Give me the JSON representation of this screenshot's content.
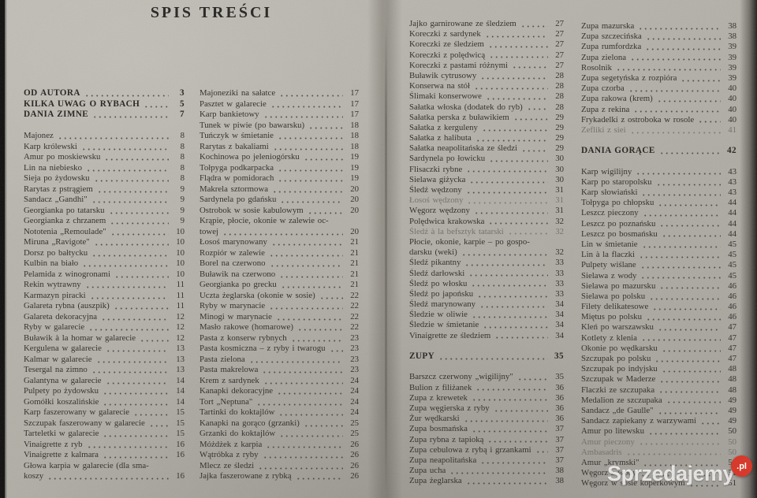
{
  "page_title": "SPIS TREŚCI",
  "watermark": {
    "text": "Sprzedajemy",
    "badge": ".pl",
    "badge_color": "#d63a2c"
  },
  "columns": [
    {
      "entries": [
        {
          "t": "OD AUTORA",
          "p": "3",
          "b": true
        },
        {
          "t": "KILKA UWAG O RYBACH",
          "p": "5",
          "b": true
        },
        {
          "t": "DANIA ZIMNE",
          "p": "7",
          "b": true
        },
        {
          "blank": true
        },
        {
          "t": "Majonez",
          "p": "8"
        },
        {
          "t": "Karp królewski",
          "p": "8"
        },
        {
          "t": "Amur po moskiewsku",
          "p": "8"
        },
        {
          "t": "Lin na niebiesko",
          "p": "8"
        },
        {
          "t": "Sieja po żydowsku",
          "p": "8"
        },
        {
          "t": "Rarytas z pstrągiem",
          "p": "9"
        },
        {
          "t": "Sandacz „Gandhi\"",
          "p": "9"
        },
        {
          "t": "Georgianka po tatarsku",
          "p": "9"
        },
        {
          "t": "Georgianka z chrzanem",
          "p": "9"
        },
        {
          "t": "Nototenia „Remoulade\"",
          "p": "10"
        },
        {
          "t": "Miruna „Ravigote\"",
          "p": "10"
        },
        {
          "t": "Dorsz po bałtycku",
          "p": "10"
        },
        {
          "t": "Kulbin na biało",
          "p": "10"
        },
        {
          "t": "Pelamida z winogronami",
          "p": "10"
        },
        {
          "t": "Rekin wytrawny",
          "p": "11"
        },
        {
          "t": "Karmazyn piracki",
          "p": "11"
        },
        {
          "t": "Galareta rybna (auszpik)",
          "p": "11"
        },
        {
          "t": "Galareta dekoracyjna",
          "p": "12"
        },
        {
          "t": "Ryby w galarecie",
          "p": "12"
        },
        {
          "t": "Buławik à la homar w galarecie",
          "p": "12"
        },
        {
          "t": "Kergulena w galarecie",
          "p": "13"
        },
        {
          "t": "Kalmar w galarecie",
          "p": "13"
        },
        {
          "t": "Tesergal na zimno",
          "p": "13"
        },
        {
          "t": "Galantyna w galarecie",
          "p": "14"
        },
        {
          "t": "Pulpety po żydowsku",
          "p": "14"
        },
        {
          "t": "Gomółki koszalińskie",
          "p": "14"
        },
        {
          "t": "Karp faszerowany w galarecie",
          "p": "15"
        },
        {
          "t": "Szczupak faszerowany w galarecie",
          "p": "15"
        },
        {
          "t": "Tarteletki w galarecie",
          "p": "15"
        },
        {
          "t": "Vinaigrette z ryb",
          "p": "16"
        },
        {
          "t": "Vinaigrette z kalmara",
          "p": "16"
        },
        {
          "t": "Głowa karpia w galarecie (dla sma-",
          "nd": true
        },
        {
          "t": "koszy",
          "p": "16"
        }
      ]
    },
    {
      "entries": [
        {
          "t": "Majoneziki na sałatce",
          "p": "17"
        },
        {
          "t": "Pasztet w galarecie",
          "p": "17"
        },
        {
          "t": "Karp bankietowy",
          "p": "17"
        },
        {
          "t": "Tunek w piwie (po bawarsku)",
          "p": "18"
        },
        {
          "t": "Tuńczyk w śmietanie",
          "p": "18"
        },
        {
          "t": "Rarytas z bakaliami",
          "p": "18"
        },
        {
          "t": "Kochinowa po jeleniogórsku",
          "p": "19"
        },
        {
          "t": "Tołpyga podkarpacka",
          "p": "19"
        },
        {
          "t": "Flądra w pomidorach",
          "p": "19"
        },
        {
          "t": "Makrela sztormowa",
          "p": "20"
        },
        {
          "t": "Sardynela po gdańsku",
          "p": "20"
        },
        {
          "t": "Ostrobok w sosie kabulowym",
          "p": "20"
        },
        {
          "t": "Krąpie, płocie, okonie w zalewie oc-",
          "nd": true
        },
        {
          "t": "towej",
          "p": "20"
        },
        {
          "t": "Łosoś marynowany",
          "p": "21"
        },
        {
          "t": "Rozpiór w zalewie",
          "p": "21"
        },
        {
          "t": "Borel na czerwono",
          "p": "21"
        },
        {
          "t": "Buławik na czerwono",
          "p": "21"
        },
        {
          "t": "Georgianka po grecku",
          "p": "21"
        },
        {
          "t": "Uczta żeglarska (okonie w sosie)",
          "p": "22"
        },
        {
          "t": "Ryby w marynacie",
          "p": "22"
        },
        {
          "t": "Minogi w marynacie",
          "p": "22"
        },
        {
          "t": "Masło rakowe (homarowe)",
          "p": "22"
        },
        {
          "t": "Pasta z konserw rybnych",
          "p": "23"
        },
        {
          "t": "Pasta kosmiczna – z ryby i twarogu",
          "p": "23"
        },
        {
          "t": "Pasta zielona",
          "p": "23"
        },
        {
          "t": "Pasta makrelowa",
          "p": "23"
        },
        {
          "t": "Krem z sardynek",
          "p": "24"
        },
        {
          "t": "Kanapki dekoracyjne",
          "p": "24"
        },
        {
          "t": "Tort „Neptuna\"",
          "p": "24"
        },
        {
          "t": "Tartinki do koktajlów",
          "p": "24"
        },
        {
          "t": "Kanapki na gorąco (grzanki)",
          "p": "25"
        },
        {
          "t": "Grzanki do koktajlów",
          "p": "25"
        },
        {
          "t": "Móżdżek z karpia",
          "p": "26"
        },
        {
          "t": "Wątróbka z ryby",
          "p": "26"
        },
        {
          "t": "Mlecz ze śledzi",
          "p": "26"
        },
        {
          "t": "Jajka faszerowane z rybką",
          "p": "26"
        }
      ]
    },
    {
      "entries": [
        {
          "t": "Jajko garnirowane ze śledziem",
          "p": "27"
        },
        {
          "t": "Koreczki z sardynek",
          "p": "27"
        },
        {
          "t": "Koreczki ze śledziem",
          "p": "27"
        },
        {
          "t": "Koreczki z polędwicą",
          "p": "27"
        },
        {
          "t": "Koreczki z pastami różnymi",
          "p": "27"
        },
        {
          "t": "Buławik cytrusowy",
          "p": "28"
        },
        {
          "t": "Konserwa na stół",
          "p": "28"
        },
        {
          "t": "Ślimaki konserwowe",
          "p": "28"
        },
        {
          "t": "Sałatka włoska (dodatek do ryb)",
          "p": "28"
        },
        {
          "t": "Sałatka perska z buławikiem",
          "p": "29"
        },
        {
          "t": "Sałatka z kerguleny",
          "p": "29"
        },
        {
          "t": "Sałatka z halibuta",
          "p": "29"
        },
        {
          "t": "Sałatka neapolitańska ze śledzi",
          "p": "29"
        },
        {
          "t": "Sardynela po łowicku",
          "p": "30"
        },
        {
          "t": "Flisaczki rybne",
          "p": "30"
        },
        {
          "t": "Sielawa giżycka",
          "p": "30"
        },
        {
          "t": "Śledź wędzony",
          "p": "31"
        },
        {
          "t": "Łosoś wędzony",
          "p": "31",
          "faded": true
        },
        {
          "t": "Węgorz wędzony",
          "p": "31"
        },
        {
          "t": "Polędwica krakowska",
          "p": "32"
        },
        {
          "t": "Śledź à la befsztyk tatarski",
          "p": "32",
          "faded": true
        },
        {
          "t": "Płocie, okonie, karpie – po gospo-",
          "nd": true
        },
        {
          "t": "darsku (weki)",
          "p": "32"
        },
        {
          "t": "Śledź pikantny",
          "p": "33"
        },
        {
          "t": "Śledź darłowski",
          "p": "33"
        },
        {
          "t": "Śledź po włosku",
          "p": "33"
        },
        {
          "t": "Śledź po japońsku",
          "p": "33"
        },
        {
          "t": "Śledź marynowany",
          "p": "34"
        },
        {
          "t": "Śledzie w oliwie",
          "p": "34"
        },
        {
          "t": "Śledzie w śmietanie",
          "p": "34"
        },
        {
          "t": "Vinaigrette ze śledziem",
          "p": "34"
        },
        {
          "blank": true
        },
        {
          "t": "ZUPY",
          "p": "35",
          "b": true
        },
        {
          "blank": true
        },
        {
          "t": "Barszcz czerwony „wigilijny\"",
          "p": "35"
        },
        {
          "t": "Bulion z filiżanek",
          "p": "36"
        },
        {
          "t": "Zupa z krewetek",
          "p": "36"
        },
        {
          "t": "Zupa węgierska z ryby",
          "p": "36"
        },
        {
          "t": "Żur wędkarski",
          "p": "36"
        },
        {
          "t": "Zupa bosmańska",
          "p": "37"
        },
        {
          "t": "Zupa rybna z tapioką",
          "p": "37"
        },
        {
          "t": "Zupa cebulowa z rybą i grzankami",
          "p": "37"
        },
        {
          "t": "Zupa neapolitańska",
          "p": "37"
        },
        {
          "t": "Zupa ucha",
          "p": "38"
        },
        {
          "t": "Zupa żeglarska",
          "p": "38"
        }
      ]
    },
    {
      "entries": [
        {
          "t": "Zupa mazurska",
          "p": "38"
        },
        {
          "t": "Zupa szczecińska",
          "p": "38"
        },
        {
          "t": "Zupa rumfordzka",
          "p": "39"
        },
        {
          "t": "Zupa zielona",
          "p": "39"
        },
        {
          "t": "Rosolnik",
          "p": "39"
        },
        {
          "t": "Zupa segetyńska z rozpióra",
          "p": "39"
        },
        {
          "t": "Zupa czorba",
          "p": "40"
        },
        {
          "t": "Zupa rakowa (krem)",
          "p": "40"
        },
        {
          "t": "Zupa z rekina",
          "p": "40"
        },
        {
          "t": "Frykadelki z ostroboka w rosole",
          "p": "40"
        },
        {
          "t": "Zefliki z siei",
          "p": "41",
          "faded": true
        },
        {
          "blank": true
        },
        {
          "t": "DANIA GORĄCE",
          "p": "42",
          "b": true
        },
        {
          "blank": true
        },
        {
          "t": "Karp wigilijny",
          "p": "43"
        },
        {
          "t": "Karp po staropolsku",
          "p": "43"
        },
        {
          "t": "Karp słowiański",
          "p": "43"
        },
        {
          "t": "Tołpyga po chłopsku",
          "p": "44"
        },
        {
          "t": "Leszcz pieczony",
          "p": "44"
        },
        {
          "t": "Leszcz po poznańsku",
          "p": "44"
        },
        {
          "t": "Leszcz po bosmańsku",
          "p": "44"
        },
        {
          "t": "Lin w śmietanie",
          "p": "45"
        },
        {
          "t": "Lin à la flaczki",
          "p": "45"
        },
        {
          "t": "Pulpety wiślane",
          "p": "45"
        },
        {
          "t": "Sielawa z wody",
          "p": "45"
        },
        {
          "t": "Sielawa po mazursku",
          "p": "46"
        },
        {
          "t": "Sielawa po polsku",
          "p": "46"
        },
        {
          "t": "Filety delikatesowe",
          "p": "46"
        },
        {
          "t": "Miętus po polsku",
          "p": "46"
        },
        {
          "t": "Kleń po warszawsku",
          "p": "47"
        },
        {
          "t": "Kotlety z klenia",
          "p": "47"
        },
        {
          "t": "Okonie po wędkarsku",
          "p": "47"
        },
        {
          "t": "Szczupak po polsku",
          "p": "47"
        },
        {
          "t": "Szczupak po indyjsku",
          "p": "48"
        },
        {
          "t": "Szczupak w Maderze",
          "p": "48"
        },
        {
          "t": "Flaczki ze szczupaka",
          "p": "48"
        },
        {
          "t": "Medalion ze szczupaka",
          "p": "49"
        },
        {
          "t": "Sandacz „de Gaulle\"",
          "p": "49"
        },
        {
          "t": "Sandacz zapiekany z warzywami",
          "p": "49"
        },
        {
          "t": "Amur po litewsku",
          "p": "50"
        },
        {
          "t": "Amur pieczony",
          "p": "50",
          "faded": true
        },
        {
          "t": "Ambasadris",
          "p": "50",
          "faded": true
        },
        {
          "t": "Amur „krymski\"",
          "p": "50"
        },
        {
          "t": "Węgorz z wody",
          "p": "51"
        },
        {
          "t": "Węgorz w sosie koperkowym",
          "p": "51"
        }
      ]
    }
  ]
}
